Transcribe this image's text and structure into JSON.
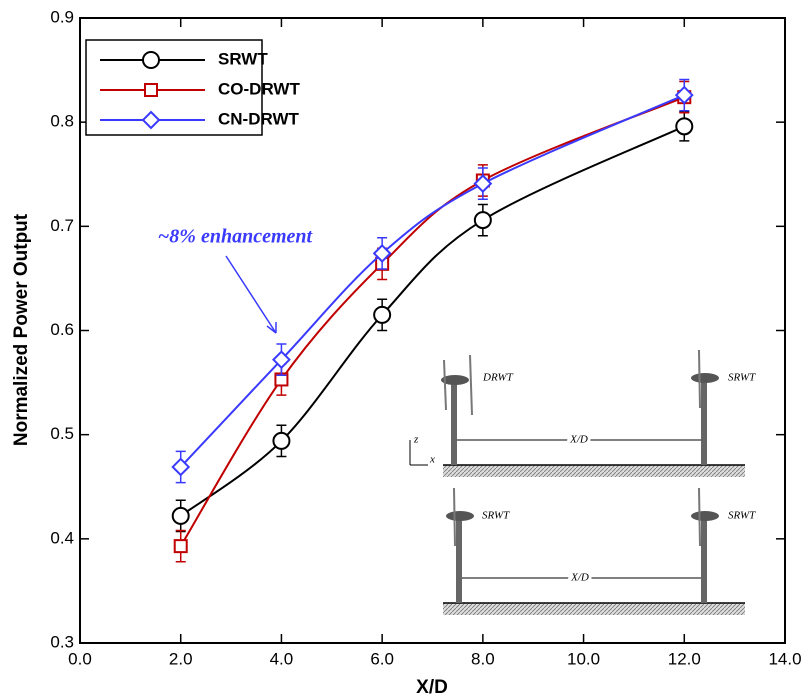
{
  "chart_data": {
    "type": "line",
    "xlabel": "X/D",
    "ylabel": "Normalized Power Output",
    "x": [
      2,
      4,
      6,
      8,
      12
    ],
    "series": [
      {
        "name": "SRWT",
        "color": "#000000",
        "marker": "circle",
        "values": [
          0.422,
          0.494,
          0.615,
          0.706,
          0.796
        ],
        "errors": [
          0.015,
          0.015,
          0.015,
          0.015,
          0.014
        ]
      },
      {
        "name": "CO-DRWT",
        "color": "#c00000",
        "marker": "square",
        "values": [
          0.393,
          0.553,
          0.664,
          0.744,
          0.824
        ],
        "errors": [
          0.015,
          0.015,
          0.015,
          0.015,
          0.015
        ]
      },
      {
        "name": "CN-DRWT",
        "color": "#3a3aff",
        "marker": "diamond",
        "values": [
          0.469,
          0.572,
          0.674,
          0.741,
          0.826
        ],
        "errors": [
          0.015,
          0.015,
          0.015,
          0.015,
          0.015
        ]
      }
    ],
    "xlim": [
      0,
      14
    ],
    "xticks": [
      {
        "value": 0,
        "label": "0.0"
      },
      {
        "value": 2,
        "label": "2.0"
      },
      {
        "value": 4,
        "label": "4.0"
      },
      {
        "value": 6,
        "label": "6.0"
      },
      {
        "value": 8,
        "label": "8.0"
      },
      {
        "value": 10,
        "label": "10.0"
      },
      {
        "value": 12,
        "label": "12.0"
      },
      {
        "value": 14,
        "label": "14.0"
      }
    ],
    "ylim": [
      0.3,
      0.9
    ],
    "yticks": [
      0.3,
      0.4,
      0.5,
      0.6,
      0.7,
      0.8,
      0.9
    ],
    "legend": "upper left",
    "annotation": "~8% enhancement",
    "inset": {
      "top": {
        "left_label": "DRWT",
        "right_label": "SRWT",
        "spacing_label": "X/D"
      },
      "bottom": {
        "left_label": "SRWT",
        "right_label": "SRWT",
        "spacing_label": "X/D"
      },
      "axis_labels": [
        "z",
        "x"
      ]
    }
  }
}
